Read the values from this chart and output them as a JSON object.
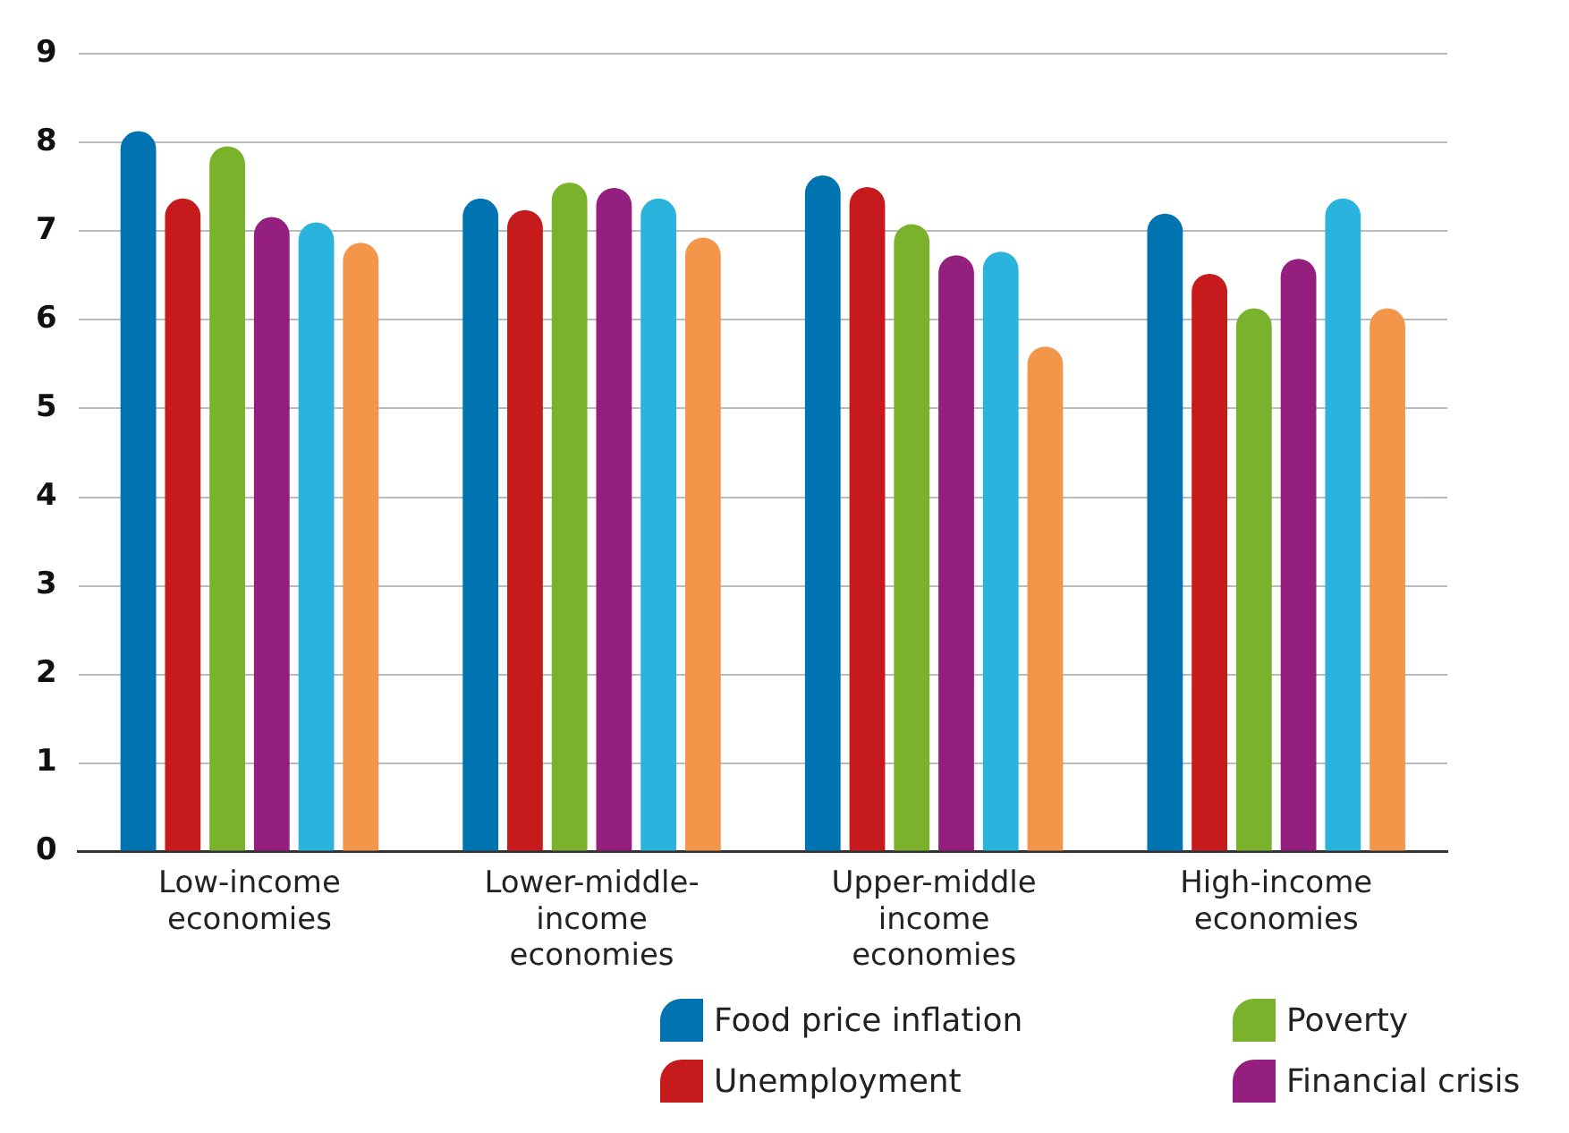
{
  "chart_data": {
    "type": "bar",
    "categories": [
      "Low-income economies",
      "Lower-middle-income economies",
      "Upper-middle income economies",
      "High-income economies"
    ],
    "series": [
      {
        "name": "Food price inflation",
        "color": "#0073b1",
        "values": [
          8.13,
          7.37,
          7.63,
          7.2
        ]
      },
      {
        "name": "Unemployment",
        "color": "#c61a1c",
        "values": [
          7.37,
          7.24,
          7.5,
          6.52
        ]
      },
      {
        "name": "Poverty",
        "color": "#7ab22c",
        "values": [
          7.96,
          7.55,
          7.08,
          6.13
        ]
      },
      {
        "name": "Financial crisis",
        "color": "#951f7e",
        "values": [
          7.16,
          7.49,
          6.73,
          6.69
        ]
      },
      {
        "color": "#2ab3dc",
        "values": [
          7.1,
          7.37,
          6.77,
          7.37
        ]
      },
      {
        "color": "#f4964a",
        "values": [
          6.87,
          6.93,
          5.7,
          6.13
        ]
      }
    ],
    "ylim": [
      0,
      9
    ],
    "yticks": [
      0,
      1,
      2,
      3,
      4,
      5,
      6,
      7,
      8,
      9
    ],
    "grid": "y",
    "legend": "bottom right"
  }
}
